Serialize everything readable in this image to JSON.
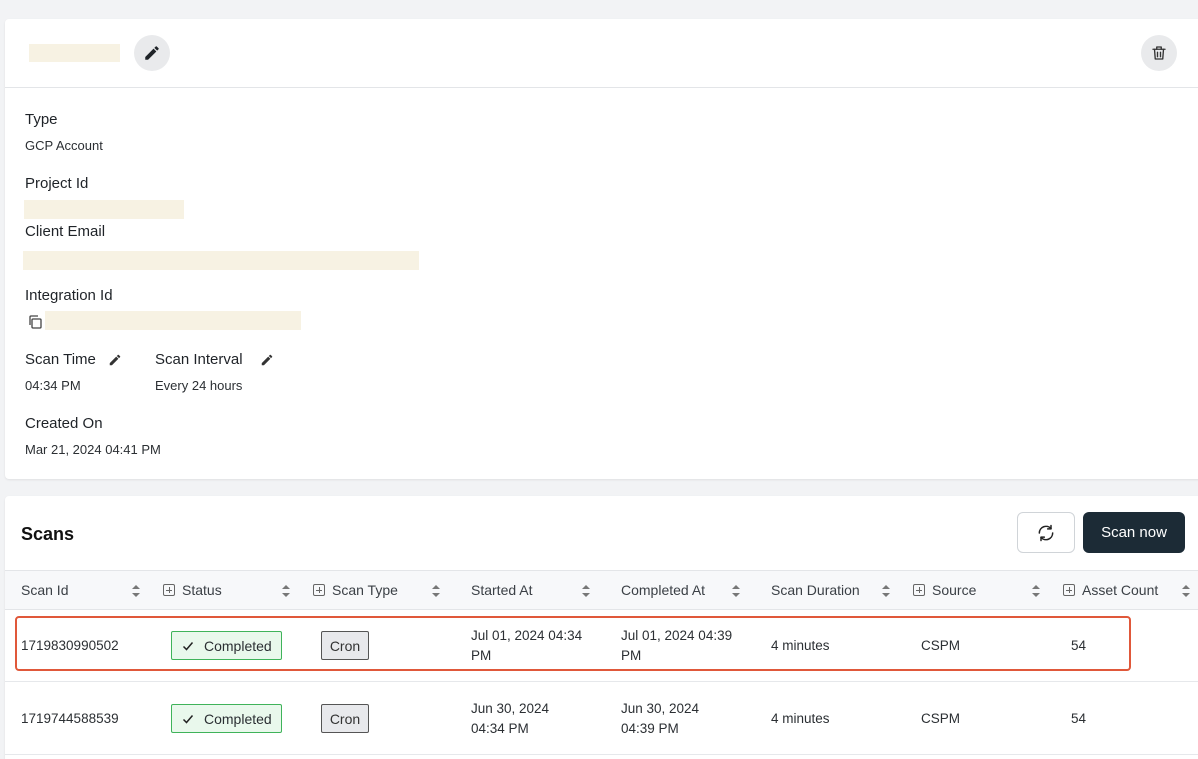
{
  "details": {
    "type_label": "Type",
    "type_value": "GCP Account",
    "project_id_label": "Project Id",
    "client_email_label": "Client Email",
    "integration_id_label": "Integration Id",
    "scan_time_label": "Scan Time",
    "scan_time_value": "04:34 PM",
    "scan_interval_label": "Scan Interval",
    "scan_interval_value": "Every 24 hours",
    "created_on_label": "Created On",
    "created_on_value": "Mar 21, 2024 04:41 PM"
  },
  "scans": {
    "title": "Scans",
    "scan_now_label": "Scan now",
    "columns": [
      {
        "label": "Scan Id",
        "expandable": false
      },
      {
        "label": "Status",
        "expandable": true
      },
      {
        "label": "Scan Type",
        "expandable": true
      },
      {
        "label": "Started At",
        "expandable": false
      },
      {
        "label": "Completed At",
        "expandable": false
      },
      {
        "label": "Scan Duration",
        "expandable": false
      },
      {
        "label": "Source",
        "expandable": true
      },
      {
        "label": "Asset Count",
        "expandable": true
      }
    ],
    "rows": [
      {
        "scan_id": "1719830990502",
        "status": "Completed",
        "scan_type": "Cron",
        "started_at_1": "Jul 01, 2024 04:34",
        "started_at_2": "PM",
        "completed_at_1": "Jul 01, 2024 04:39",
        "completed_at_2": "PM",
        "duration": "4 minutes",
        "source": "CSPM",
        "asset_count": "54",
        "highlighted": true
      },
      {
        "scan_id": "1719744588539",
        "status": "Completed",
        "scan_type": "Cron",
        "started_at_1": "Jun 30, 2024",
        "started_at_2": "04:34 PM",
        "completed_at_1": "Jun 30, 2024",
        "completed_at_2": "04:39 PM",
        "duration": "4 minutes",
        "source": "CSPM",
        "asset_count": "54",
        "highlighted": false
      }
    ]
  },
  "colors": {
    "status_completed_border": "#3fb35a",
    "status_completed_bg": "#e9f8ec",
    "primary_button": "#1c2b36",
    "highlight_border": "#e0583a"
  },
  "icons": {
    "edit_name": "pencil-icon",
    "delete": "trash-icon",
    "copy": "copy-icon",
    "refresh": "refresh-icon",
    "check": "check-icon",
    "sort": "sort-icon"
  }
}
